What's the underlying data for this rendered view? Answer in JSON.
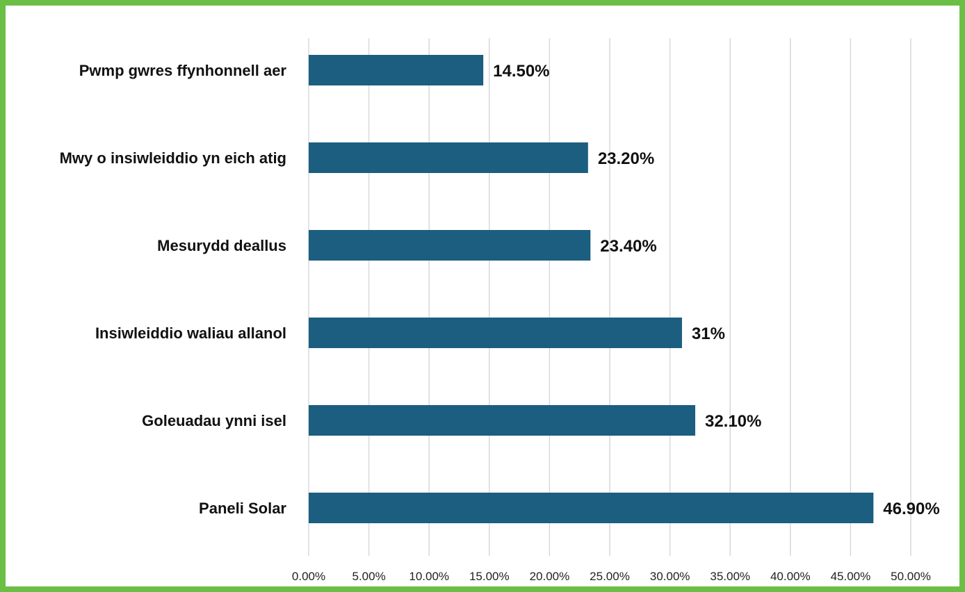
{
  "chart_data": {
    "type": "bar",
    "orientation": "horizontal",
    "categories": [
      "Pwmp gwres ffynhonnell aer",
      "Mwy o insiwleiddio yn eich atig",
      "Mesurydd deallus",
      "Insiwleiddio waliau allanol",
      "Goleuadau ynni isel",
      "Paneli Solar"
    ],
    "values": [
      14.5,
      23.2,
      23.4,
      31,
      32.1,
      46.9
    ],
    "value_labels": [
      "14.50%",
      "23.20%",
      "23.40%",
      "31%",
      "32.10%",
      "46.90%"
    ],
    "x_ticks": [
      "0.00%",
      "5.00%",
      "10.00%",
      "15.00%",
      "20.00%",
      "25.00%",
      "30.00%",
      "35.00%",
      "40.00%",
      "45.00%",
      "50.00%"
    ],
    "xlim": [
      0,
      50
    ],
    "grid": "vertical",
    "legend": "none",
    "title": "",
    "xlabel": "",
    "ylabel": "",
    "colors": {
      "bar": "#1b5e80",
      "frame": "#6cbf45",
      "grid": "#d9d9d9"
    }
  }
}
